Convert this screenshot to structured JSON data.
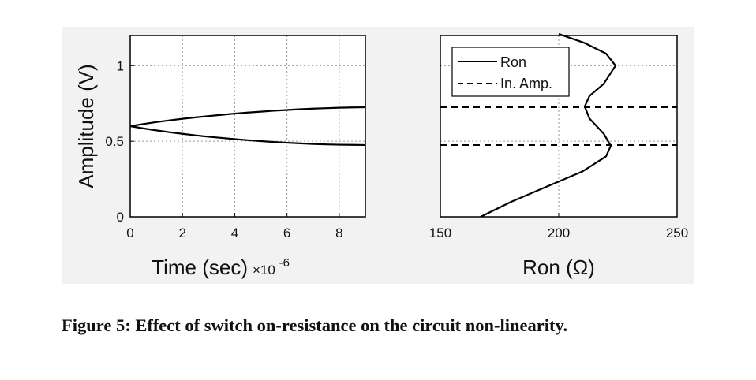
{
  "figure": {
    "caption": "Figure 5: Effect of switch on-resistance on the circuit non-linearity."
  },
  "chart_data": [
    {
      "type": "line",
      "ylabel": "Amplitude (V)",
      "xlabel": "Time (sec)",
      "x_multiplier": "×10",
      "x_multiplier_exp": "-6",
      "xlim": [
        0,
        9
      ],
      "ylim": [
        0,
        1.2
      ],
      "xticks": [
        "0",
        "2",
        "4",
        "6",
        "8"
      ],
      "yticks": [
        "0",
        "0.5",
        "1"
      ],
      "grid": true,
      "series": [
        {
          "x": [
            0,
            0.5,
            1,
            1.5,
            2,
            2.5,
            3,
            3.5,
            4,
            4.5,
            5,
            5.5,
            6,
            6.5,
            7,
            7.5,
            8,
            8.5,
            9
          ],
          "y": [
            0.6,
            0.614,
            0.627,
            0.638,
            0.649,
            0.658,
            0.667,
            0.675,
            0.683,
            0.69,
            0.696,
            0.702,
            0.707,
            0.712,
            0.716,
            0.719,
            0.722,
            0.724,
            0.725
          ]
        },
        {
          "x": [
            0,
            0.5,
            1,
            1.5,
            2,
            2.5,
            3,
            3.5,
            4,
            4.5,
            5,
            5.5,
            6,
            6.5,
            7,
            7.5,
            8,
            8.5,
            9
          ],
          "y": [
            0.6,
            0.585,
            0.572,
            0.56,
            0.549,
            0.539,
            0.53,
            0.522,
            0.514,
            0.507,
            0.501,
            0.495,
            0.49,
            0.486,
            0.482,
            0.479,
            0.477,
            0.476,
            0.475
          ]
        }
      ]
    },
    {
      "type": "line",
      "xlabel": "Ron (Ω)",
      "xlim": [
        150,
        250
      ],
      "ylim": [
        0,
        1.2
      ],
      "xticks": [
        "150",
        "200",
        "250"
      ],
      "grid": true,
      "legend": {
        "position": "top-left",
        "entries": [
          "Ron",
          "In. Amp."
        ]
      },
      "series": [
        {
          "name": "Ron",
          "style": "solid",
          "x": [
            167,
            180,
            195,
            210,
            220,
            222,
            219,
            213,
            211,
            213,
            219,
            224,
            220,
            211,
            200
          ],
          "y": [
            0.0,
            0.1,
            0.2,
            0.3,
            0.4,
            0.47,
            0.55,
            0.65,
            0.73,
            0.8,
            0.88,
            1.0,
            1.08,
            1.15,
            1.21
          ]
        },
        {
          "name": "In. Amp.",
          "style": "dashed",
          "hlines": [
            0.725,
            0.475
          ]
        }
      ]
    }
  ]
}
